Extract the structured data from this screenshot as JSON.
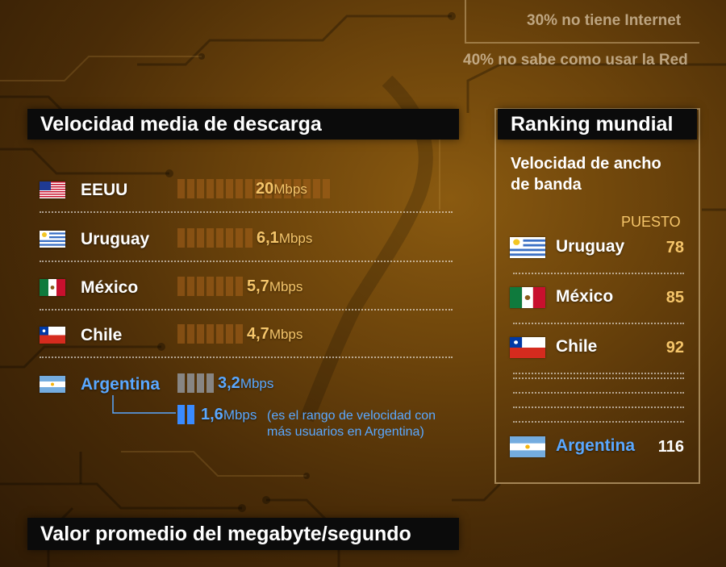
{
  "top_stats": [
    "30% no tiene Internet",
    "40% no sabe como usar la Red"
  ],
  "download": {
    "title": "Velocidad media de descarga",
    "unit": "Mbps",
    "rows": [
      {
        "country": "EEUU",
        "value": "20",
        "flag": "us-flag-icon",
        "segments": 16
      },
      {
        "country": "Uruguay",
        "value": "6,1",
        "flag": "uruguay-flag-icon",
        "segments": 8
      },
      {
        "country": "México",
        "value": "5,7",
        "flag": "mexico-flag-icon",
        "segments": 7
      },
      {
        "country": "Chile",
        "value": "4,7",
        "flag": "chile-flag-icon",
        "segments": 7
      },
      {
        "country": "Argentina",
        "value": "3,2",
        "flag": "argentina-flag-icon",
        "segments": 4,
        "highlight": true
      }
    ],
    "range_value": "1,6",
    "range_note": "(es el rango de velocidad con más usuarios en Argentina)"
  },
  "ranking": {
    "title": "Ranking mundial",
    "subtitle": "Velocidad de ancho de banda",
    "column_label": "PUESTO",
    "rows": [
      {
        "country": "Uruguay",
        "rank": "78"
      },
      {
        "country": "México",
        "rank": "85"
      },
      {
        "country": "Chile",
        "rank": "92"
      },
      {
        "country": "Argentina",
        "rank": "116"
      }
    ]
  },
  "bottom_title": "Valor promedio del megabyte/segundo",
  "colors": {
    "accent_orange": "#f5c56a",
    "accent_blue": "#5aa8ff",
    "bar_segment": "#a8621c",
    "bar_segment_argentina": "#8a8a8a"
  },
  "chart_data": {
    "type": "bar",
    "title": "Velocidad media de descarga",
    "categories": [
      "EEUU",
      "Uruguay",
      "México",
      "Chile",
      "Argentina"
    ],
    "values": [
      20,
      6.1,
      5.7,
      4.7,
      3.2
    ],
    "unit": "Mbps",
    "orientation": "horizontal",
    "annotation": {
      "value": 1.6,
      "category": "Argentina",
      "text": "(es el rango de velocidad con más usuarios en Argentina)"
    }
  }
}
